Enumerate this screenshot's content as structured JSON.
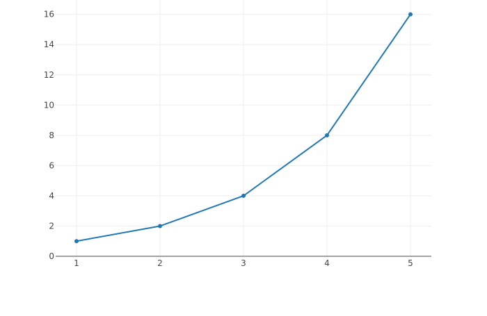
{
  "chart_data": {
    "type": "line",
    "title": "",
    "xlabel": "",
    "ylabel": "",
    "x": [
      1,
      2,
      3,
      4,
      5
    ],
    "series": [
      {
        "values": [
          1,
          2,
          4,
          8,
          16
        ],
        "color": "#1f77b4",
        "mode": "lines+markers"
      }
    ],
    "xlim": [
      0.75,
      5.25
    ],
    "ylim": [
      0,
      16.95
    ],
    "xticks": [
      1,
      2,
      3,
      4,
      5
    ],
    "yticks": [
      0,
      2,
      4,
      6,
      8,
      10,
      12,
      14,
      16
    ],
    "grid": true,
    "legend": "none"
  }
}
